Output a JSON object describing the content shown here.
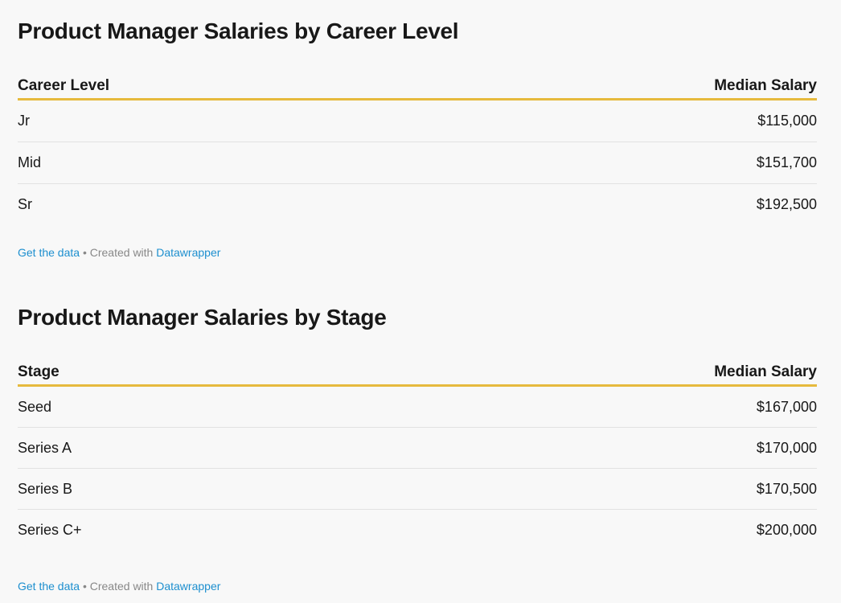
{
  "chart_data": [
    {
      "type": "table",
      "title": "Product Manager Salaries by Career Level",
      "columns": [
        "Career Level",
        "Median Salary"
      ],
      "rows": [
        [
          "Jr",
          "$115,000"
        ],
        [
          "Mid",
          "$151,700"
        ],
        [
          "Sr",
          "$192,500"
        ]
      ],
      "footer": {
        "get_data": "Get the data",
        "sep": " • Created with ",
        "tool": "Datawrapper"
      }
    },
    {
      "type": "table",
      "title": "Product Manager Salaries by Stage",
      "columns": [
        "Stage",
        "Median Salary"
      ],
      "rows": [
        [
          "Seed",
          "$167,000"
        ],
        [
          "Series A",
          "$170,000"
        ],
        [
          "Series B",
          "$170,500"
        ],
        [
          "Series C+",
          "$200,000"
        ]
      ],
      "footer": {
        "get_data": "Get the data",
        "sep": " • Created with ",
        "tool": "Datawrapper"
      }
    }
  ],
  "colors": {
    "header_rule": "#e6ba3d",
    "link": "#1d8fcf"
  }
}
